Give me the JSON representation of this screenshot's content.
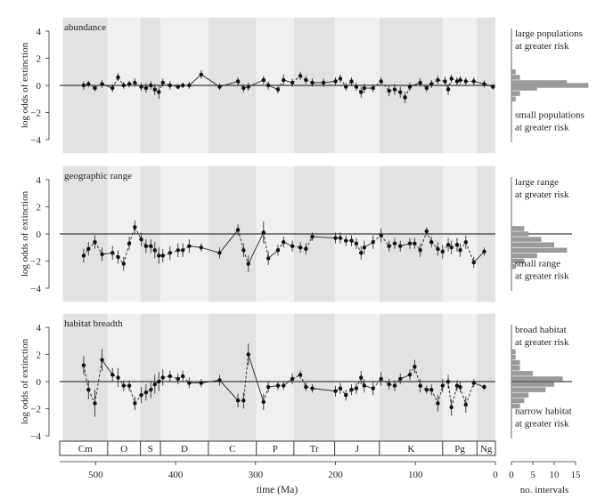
{
  "chart_data": {
    "type": "scatter",
    "xlabel": "time (Ma)",
    "ylabel": "log odds of extinction",
    "xlim": [
      545,
      0
    ],
    "ylim": [
      -5,
      5
    ],
    "xticks": [
      500,
      400,
      300,
      200,
      100,
      0
    ],
    "yticks": [
      4,
      2,
      0,
      -2,
      -4
    ],
    "periods": [
      {
        "label": "Cm",
        "start": 541,
        "end": 485,
        "shade": true
      },
      {
        "label": "O",
        "start": 485,
        "end": 444,
        "shade": false
      },
      {
        "label": "S",
        "start": 444,
        "end": 419,
        "shade": true
      },
      {
        "label": "D",
        "start": 419,
        "end": 359,
        "shade": false
      },
      {
        "label": "C",
        "start": 359,
        "end": 299,
        "shade": true
      },
      {
        "label": "P",
        "start": 299,
        "end": 252,
        "shade": false
      },
      {
        "label": "Tr",
        "start": 252,
        "end": 201,
        "shade": true
      },
      {
        "label": "J",
        "start": 201,
        "end": 145,
        "shade": false
      },
      {
        "label": "K",
        "start": 145,
        "end": 66,
        "shade": true
      },
      {
        "label": "Pg",
        "start": 66,
        "end": 23,
        "shade": false
      },
      {
        "label": "Ng",
        "start": 23,
        "end": 0,
        "shade": true
      }
    ],
    "panels": [
      {
        "title": "abundance",
        "note_top": "large populations at greater risk",
        "note_bottom": "small populations at greater risk",
        "points": [
          {
            "x": 515,
            "y": 0.0,
            "e": 0.3
          },
          {
            "x": 509,
            "y": 0.1,
            "e": 0.25
          },
          {
            "x": 501,
            "y": -0.2,
            "e": 0.25
          },
          {
            "x": 492,
            "y": 0.1,
            "e": 0.3
          },
          {
            "x": 479,
            "y": -0.2,
            "e": 0.3
          },
          {
            "x": 472,
            "y": 0.6,
            "e": 0.3
          },
          {
            "x": 465,
            "y": 0.0,
            "e": 0.25
          },
          {
            "x": 458,
            "y": 0.1,
            "e": 0.25
          },
          {
            "x": 451,
            "y": 0.2,
            "e": 0.3
          },
          {
            "x": 443,
            "y": -0.1,
            "e": 0.3
          },
          {
            "x": 437,
            "y": -0.2,
            "e": 0.35
          },
          {
            "x": 431,
            "y": 0.0,
            "e": 0.3
          },
          {
            "x": 426,
            "y": -0.3,
            "e": 0.4
          },
          {
            "x": 421,
            "y": -0.5,
            "e": 0.5
          },
          {
            "x": 416,
            "y": 0.2,
            "e": 0.3
          },
          {
            "x": 407,
            "y": 0.0,
            "e": 0.3
          },
          {
            "x": 397,
            "y": -0.1,
            "e": 0.2
          },
          {
            "x": 391,
            "y": 0.0,
            "e": 0.2
          },
          {
            "x": 383,
            "y": 0.0,
            "e": 0.25
          },
          {
            "x": 368,
            "y": 0.8,
            "e": 0.3
          },
          {
            "x": 345,
            "y": -0.1,
            "e": 0.25
          },
          {
            "x": 322,
            "y": 0.3,
            "e": 0.3
          },
          {
            "x": 315,
            "y": -0.2,
            "e": 0.3
          },
          {
            "x": 309,
            "y": -0.1,
            "e": 0.3
          },
          {
            "x": 290,
            "y": 0.4,
            "e": 0.3
          },
          {
            "x": 284,
            "y": 0.0,
            "e": 0.3
          },
          {
            "x": 272,
            "y": -0.3,
            "e": 0.3
          },
          {
            "x": 265,
            "y": 0.4,
            "e": 0.4
          },
          {
            "x": 254,
            "y": 0.2,
            "e": 0.3
          },
          {
            "x": 244,
            "y": 0.7,
            "e": 0.3
          },
          {
            "x": 237,
            "y": 0.4,
            "e": 0.3
          },
          {
            "x": 229,
            "y": 0.2,
            "e": 0.3
          },
          {
            "x": 215,
            "y": 0.2,
            "e": 0.3
          },
          {
            "x": 200,
            "y": 0.3,
            "e": 0.3
          },
          {
            "x": 194,
            "y": 0.5,
            "e": 0.3
          },
          {
            "x": 187,
            "y": -0.1,
            "e": 0.3
          },
          {
            "x": 180,
            "y": 0.3,
            "e": 0.3
          },
          {
            "x": 174,
            "y": -0.1,
            "e": 0.3
          },
          {
            "x": 168,
            "y": -0.5,
            "e": 0.4
          },
          {
            "x": 164,
            "y": -0.2,
            "e": 0.35
          },
          {
            "x": 153,
            "y": -0.2,
            "e": 0.3
          },
          {
            "x": 143,
            "y": 0.3,
            "e": 0.3
          },
          {
            "x": 133,
            "y": -0.4,
            "e": 0.4
          },
          {
            "x": 126,
            "y": -0.3,
            "e": 0.4
          },
          {
            "x": 119,
            "y": -0.5,
            "e": 0.4
          },
          {
            "x": 113,
            "y": -0.9,
            "e": 0.4
          },
          {
            "x": 107,
            "y": -0.1,
            "e": 0.3
          },
          {
            "x": 94,
            "y": 0.2,
            "e": 0.3
          },
          {
            "x": 86,
            "y": -0.2,
            "e": 0.3
          },
          {
            "x": 80,
            "y": 0.1,
            "e": 0.3
          },
          {
            "x": 72,
            "y": 0.4,
            "e": 0.3
          },
          {
            "x": 63,
            "y": 0.3,
            "e": 0.35
          },
          {
            "x": 59,
            "y": -0.3,
            "e": 0.4
          },
          {
            "x": 55,
            "y": 0.5,
            "e": 0.3
          },
          {
            "x": 48,
            "y": 0.3,
            "e": 0.3
          },
          {
            "x": 44,
            "y": 0.4,
            "e": 0.3
          },
          {
            "x": 37,
            "y": 0.3,
            "e": 0.3
          },
          {
            "x": 27,
            "y": 0.3,
            "e": 0.3
          },
          {
            "x": 14,
            "y": 0.1,
            "e": 0.25
          },
          {
            "x": 3,
            "y": -0.1,
            "e": 0.2
          }
        ],
        "hist": [
          {
            "y": 1.0,
            "n": 1
          },
          {
            "y": 0.6,
            "n": 2
          },
          {
            "y": 0.2,
            "n": 13
          },
          {
            "y": 0.0,
            "n": 18
          },
          {
            "y": -0.2,
            "n": 6
          },
          {
            "y": -0.6,
            "n": 2
          },
          {
            "y": -1.0,
            "n": 1
          }
        ]
      },
      {
        "title": "geographic range",
        "note_top": "large range at greater risk",
        "note_bottom": "small range at greater risk",
        "points": [
          {
            "x": 515,
            "y": -1.6,
            "e": 0.5
          },
          {
            "x": 509,
            "y": -1.1,
            "e": 0.5
          },
          {
            "x": 501,
            "y": -0.6,
            "e": 0.5
          },
          {
            "x": 492,
            "y": -1.5,
            "e": 0.5
          },
          {
            "x": 479,
            "y": -1.4,
            "e": 0.5
          },
          {
            "x": 472,
            "y": -1.7,
            "e": 0.5
          },
          {
            "x": 465,
            "y": -2.2,
            "e": 0.5
          },
          {
            "x": 458,
            "y": -0.7,
            "e": 0.5
          },
          {
            "x": 451,
            "y": 0.5,
            "e": 0.5
          },
          {
            "x": 443,
            "y": -0.4,
            "e": 0.5
          },
          {
            "x": 437,
            "y": -0.9,
            "e": 0.5
          },
          {
            "x": 431,
            "y": -0.9,
            "e": 0.5
          },
          {
            "x": 426,
            "y": -1.2,
            "e": 0.6
          },
          {
            "x": 421,
            "y": -1.6,
            "e": 0.6
          },
          {
            "x": 416,
            "y": -1.6,
            "e": 0.5
          },
          {
            "x": 407,
            "y": -1.4,
            "e": 0.5
          },
          {
            "x": 397,
            "y": -1.2,
            "e": 0.5
          },
          {
            "x": 391,
            "y": -1.2,
            "e": 0.5
          },
          {
            "x": 383,
            "y": -0.9,
            "e": 0.5
          },
          {
            "x": 368,
            "y": -1.0,
            "e": 0.3
          },
          {
            "x": 345,
            "y": -1.4,
            "e": 0.4
          },
          {
            "x": 322,
            "y": 0.3,
            "e": 0.4
          },
          {
            "x": 315,
            "y": -1.2,
            "e": 0.5
          },
          {
            "x": 309,
            "y": -2.2,
            "e": 0.6
          },
          {
            "x": 290,
            "y": 0.1,
            "e": 0.8
          },
          {
            "x": 284,
            "y": -1.8,
            "e": 0.5
          },
          {
            "x": 272,
            "y": -1.2,
            "e": 0.4
          },
          {
            "x": 265,
            "y": -0.6,
            "e": 0.4
          },
          {
            "x": 254,
            "y": -0.9,
            "e": 0.4
          },
          {
            "x": 244,
            "y": -1.0,
            "e": 0.4
          },
          {
            "x": 237,
            "y": -1.1,
            "e": 0.4
          },
          {
            "x": 229,
            "y": -0.2,
            "e": 0.3
          },
          {
            "x": 200,
            "y": -0.3,
            "e": 0.4
          },
          {
            "x": 194,
            "y": -0.3,
            "e": 0.4
          },
          {
            "x": 187,
            "y": -0.5,
            "e": 0.4
          },
          {
            "x": 180,
            "y": -0.5,
            "e": 0.4
          },
          {
            "x": 174,
            "y": -0.7,
            "e": 0.4
          },
          {
            "x": 168,
            "y": -1.4,
            "e": 0.5
          },
          {
            "x": 164,
            "y": -1.0,
            "e": 0.5
          },
          {
            "x": 153,
            "y": -0.6,
            "e": 0.5
          },
          {
            "x": 143,
            "y": -0.1,
            "e": 0.5
          },
          {
            "x": 133,
            "y": -0.9,
            "e": 0.4
          },
          {
            "x": 126,
            "y": -0.7,
            "e": 0.4
          },
          {
            "x": 119,
            "y": -0.9,
            "e": 0.4
          },
          {
            "x": 107,
            "y": -0.7,
            "e": 0.4
          },
          {
            "x": 101,
            "y": -0.7,
            "e": 0.4
          },
          {
            "x": 94,
            "y": -1.2,
            "e": 0.5
          },
          {
            "x": 86,
            "y": 0.2,
            "e": 0.3
          },
          {
            "x": 80,
            "y": -0.6,
            "e": 0.4
          },
          {
            "x": 72,
            "y": -1.1,
            "e": 0.5
          },
          {
            "x": 66,
            "y": -1.3,
            "e": 0.5
          },
          {
            "x": 59,
            "y": -0.8,
            "e": 0.5
          },
          {
            "x": 55,
            "y": -1.0,
            "e": 0.5
          },
          {
            "x": 48,
            "y": -0.8,
            "e": 0.5
          },
          {
            "x": 44,
            "y": -1.2,
            "e": 0.5
          },
          {
            "x": 37,
            "y": -0.6,
            "e": 0.5
          },
          {
            "x": 27,
            "y": -2.1,
            "e": 0.4
          },
          {
            "x": 14,
            "y": -1.3,
            "e": 0.3
          }
        ],
        "hist": [
          {
            "y": 0.4,
            "n": 3
          },
          {
            "y": 0.0,
            "n": 4
          },
          {
            "y": -0.4,
            "n": 7
          },
          {
            "y": -0.8,
            "n": 10
          },
          {
            "y": -1.2,
            "n": 13
          },
          {
            "y": -1.6,
            "n": 6
          },
          {
            "y": -2.0,
            "n": 3
          },
          {
            "y": -2.4,
            "n": 1
          }
        ]
      },
      {
        "title": "habitat breadth",
        "note_top": "broad habitat at greater risk",
        "note_bottom": "narrow habitat at greater risk",
        "points": [
          {
            "x": 515,
            "y": 1.2,
            "e": 0.7
          },
          {
            "x": 509,
            "y": -0.6,
            "e": 0.7
          },
          {
            "x": 501,
            "y": -1.6,
            "e": 1.0
          },
          {
            "x": 492,
            "y": 1.6,
            "e": 0.8
          },
          {
            "x": 479,
            "y": 0.5,
            "e": 0.5
          },
          {
            "x": 472,
            "y": 0.3,
            "e": 0.7
          },
          {
            "x": 465,
            "y": -0.3,
            "e": 0.4
          },
          {
            "x": 458,
            "y": -0.3,
            "e": 0.4
          },
          {
            "x": 451,
            "y": -1.6,
            "e": 0.5
          },
          {
            "x": 443,
            "y": -1.0,
            "e": 0.6
          },
          {
            "x": 437,
            "y": -0.8,
            "e": 0.6
          },
          {
            "x": 431,
            "y": -0.6,
            "e": 0.6
          },
          {
            "x": 426,
            "y": -0.2,
            "e": 0.7
          },
          {
            "x": 421,
            "y": 0.0,
            "e": 0.7
          },
          {
            "x": 416,
            "y": 0.3,
            "e": 0.6
          },
          {
            "x": 407,
            "y": 0.4,
            "e": 0.4
          },
          {
            "x": 397,
            "y": 0.2,
            "e": 0.4
          },
          {
            "x": 391,
            "y": 0.4,
            "e": 0.4
          },
          {
            "x": 383,
            "y": -0.1,
            "e": 0.4
          },
          {
            "x": 368,
            "y": -0.1,
            "e": 0.3
          },
          {
            "x": 345,
            "y": 0.1,
            "e": 0.4
          },
          {
            "x": 322,
            "y": -1.4,
            "e": 0.5
          },
          {
            "x": 315,
            "y": -1.4,
            "e": 0.6
          },
          {
            "x": 309,
            "y": 2.0,
            "e": 0.8
          },
          {
            "x": 290,
            "y": -1.5,
            "e": 0.6
          },
          {
            "x": 284,
            "y": -0.4,
            "e": 0.4
          },
          {
            "x": 272,
            "y": -0.3,
            "e": 0.3
          },
          {
            "x": 265,
            "y": -0.3,
            "e": 0.3
          },
          {
            "x": 254,
            "y": 0.2,
            "e": 0.4
          },
          {
            "x": 244,
            "y": 0.5,
            "e": 0.3
          },
          {
            "x": 237,
            "y": -0.4,
            "e": 0.3
          },
          {
            "x": 229,
            "y": -0.5,
            "e": 0.3
          },
          {
            "x": 200,
            "y": -0.7,
            "e": 0.4
          },
          {
            "x": 194,
            "y": -0.5,
            "e": 0.4
          },
          {
            "x": 187,
            "y": -1.0,
            "e": 0.4
          },
          {
            "x": 180,
            "y": -0.6,
            "e": 0.4
          },
          {
            "x": 174,
            "y": -0.5,
            "e": 0.4
          },
          {
            "x": 168,
            "y": 0.3,
            "e": 0.5
          },
          {
            "x": 164,
            "y": -0.3,
            "e": 0.5
          },
          {
            "x": 153,
            "y": -0.5,
            "e": 0.5
          },
          {
            "x": 143,
            "y": 0.2,
            "e": 0.5
          },
          {
            "x": 133,
            "y": -0.2,
            "e": 0.4
          },
          {
            "x": 126,
            "y": -0.3,
            "e": 0.4
          },
          {
            "x": 119,
            "y": 0.2,
            "e": 0.4
          },
          {
            "x": 107,
            "y": 0.5,
            "e": 0.4
          },
          {
            "x": 101,
            "y": 1.1,
            "e": 0.5
          },
          {
            "x": 94,
            "y": -0.3,
            "e": 0.5
          },
          {
            "x": 86,
            "y": -0.6,
            "e": 0.3
          },
          {
            "x": 80,
            "y": -0.6,
            "e": 0.4
          },
          {
            "x": 72,
            "y": -1.6,
            "e": 0.6
          },
          {
            "x": 66,
            "y": -0.3,
            "e": 0.5
          },
          {
            "x": 59,
            "y": 0.0,
            "e": 0.5
          },
          {
            "x": 55,
            "y": -1.9,
            "e": 0.6
          },
          {
            "x": 48,
            "y": -0.3,
            "e": 0.4
          },
          {
            "x": 44,
            "y": -0.4,
            "e": 0.4
          },
          {
            "x": 37,
            "y": -1.7,
            "e": 0.6
          },
          {
            "x": 27,
            "y": -0.1,
            "e": 0.3
          },
          {
            "x": 14,
            "y": -0.4,
            "e": 0.2
          }
        ],
        "hist": [
          {
            "y": 2.2,
            "n": 1
          },
          {
            "y": 1.8,
            "n": 1
          },
          {
            "y": 1.4,
            "n": 2
          },
          {
            "y": 1.0,
            "n": 2
          },
          {
            "y": 0.6,
            "n": 5
          },
          {
            "y": 0.2,
            "n": 12
          },
          {
            "y": -0.2,
            "n": 10
          },
          {
            "y": -0.6,
            "n": 8
          },
          {
            "y": -1.0,
            "n": 4
          },
          {
            "y": -1.4,
            "n": 3
          },
          {
            "y": -1.8,
            "n": 2
          }
        ]
      }
    ],
    "hist_xlabel": "no. intervals",
    "hist_xticks": [
      0,
      5,
      10,
      15
    ],
    "hist_xlim": [
      0,
      15
    ]
  }
}
